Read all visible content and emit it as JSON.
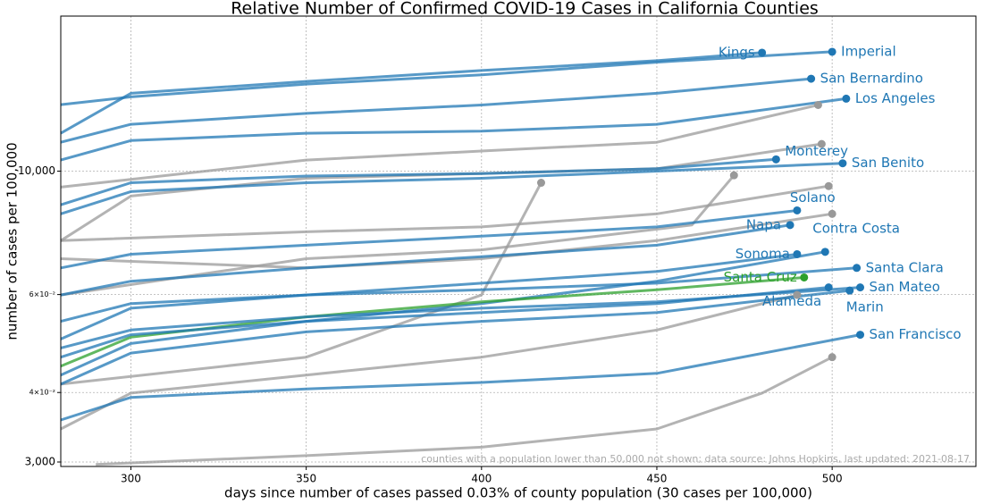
{
  "chart_data": {
    "type": "line",
    "title": "Relative Number of Confirmed COVID-19 Cases in California Counties",
    "x_label": "days since number of cases passed 0.03% of county population (30 cases per 100,000)",
    "y_label": "number of cases per 100,000",
    "annotation": "counties with a population lower than 50,000 not shown; data source: Johns Hopkins, last updated: 2021-08-17",
    "log_y": true,
    "grid": true,
    "xlim": [
      280,
      541
    ],
    "ylim": [
      2945,
      19000
    ],
    "xticks": [
      300,
      350,
      400,
      450,
      500
    ],
    "yticks": [
      {
        "value": 3000,
        "label": "3,000"
      },
      {
        "value": 4000,
        "label": "4×10⁻²"
      },
      {
        "value": 6000,
        "label": "6×10⁻²"
      },
      {
        "value": 10000,
        "label": "10,000"
      }
    ],
    "series": [
      {
        "name": "Imperial",
        "color": "#1f77b4",
        "x": [
          280,
          300,
          350,
          400,
          450,
          500
        ],
        "values": [
          13170,
          13600,
          14340,
          14900,
          15700,
          16390
        ]
      },
      {
        "name": "Kings",
        "color": "#1f77b4",
        "x": [
          280,
          300,
          350,
          400,
          450,
          480
        ],
        "values": [
          11700,
          13800,
          14500,
          15170,
          15800,
          16330
        ]
      },
      {
        "name": "San Bernardino",
        "color": "#1f77b4",
        "x": [
          280,
          300,
          350,
          400,
          450,
          494
        ],
        "values": [
          11270,
          12140,
          12700,
          13150,
          13800,
          14660
        ]
      },
      {
        "name": "Los Angeles",
        "color": "#1f77b4",
        "x": [
          280,
          300,
          350,
          400,
          450,
          504
        ],
        "values": [
          10470,
          11350,
          11700,
          11800,
          12140,
          13500
        ]
      },
      {
        "name": "Monterey",
        "color": "#1f77b4",
        "x": [
          280,
          300,
          350,
          400,
          450,
          484
        ],
        "values": [
          8700,
          9530,
          9800,
          9900,
          10100,
          10500
        ]
      },
      {
        "name": "San Benito",
        "color": "#1f77b4",
        "x": [
          280,
          300,
          350,
          400,
          450,
          503
        ],
        "values": [
          8380,
          9190,
          9530,
          9710,
          10000,
          10330
        ]
      },
      {
        "name": "Solano",
        "color": "#1f77b4",
        "x": [
          280,
          300,
          350,
          400,
          450,
          490
        ],
        "values": [
          6700,
          7090,
          7360,
          7640,
          7940,
          8500
        ]
      },
      {
        "name": "Napa",
        "color": "#1f77b4",
        "x": [
          280,
          300,
          350,
          400,
          450,
          488
        ],
        "values": [
          5990,
          6340,
          6700,
          7020,
          7360,
          8000
        ]
      },
      {
        "name": "Contra Costa",
        "color": "#1f77b4",
        "x": [
          280,
          300,
          350,
          400,
          450,
          498
        ],
        "values": [
          4300,
          4900,
          5370,
          5780,
          6340,
          7160
        ]
      },
      {
        "name": "Sonoma",
        "color": "#1f77b4",
        "x": [
          280,
          300,
          350,
          400,
          450,
          490
        ],
        "values": [
          4990,
          5670,
          5990,
          6290,
          6600,
          7090
        ]
      },
      {
        "name": "Santa Cruz",
        "color": "#2ca02c",
        "x": [
          280,
          300,
          350,
          400,
          450,
          492
        ],
        "values": [
          4460,
          5030,
          5470,
          5820,
          6120,
          6440
        ]
      },
      {
        "name": "Santa Clara",
        "color": "#1f77b4",
        "x": [
          280,
          300,
          350,
          400,
          450,
          507
        ],
        "values": [
          5370,
          5780,
          5990,
          6120,
          6290,
          6700
        ]
      },
      {
        "name": "Alameda",
        "color": "#1f77b4",
        "x": [
          280,
          300,
          350,
          400,
          450,
          499
        ],
        "values": [
          4630,
          5080,
          5370,
          5570,
          5780,
          6180
        ]
      },
      {
        "name": "San Mateo",
        "color": "#1f77b4",
        "x": [
          280,
          300,
          350,
          400,
          450,
          508
        ],
        "values": [
          4810,
          5180,
          5470,
          5670,
          5820,
          6180
        ]
      },
      {
        "name": "Marin",
        "color": "#1f77b4",
        "x": [
          280,
          300,
          350,
          400,
          450,
          505
        ],
        "values": [
          4140,
          4710,
          5140,
          5370,
          5570,
          6100
        ]
      },
      {
        "name": "San Francisco",
        "color": "#1f77b4",
        "x": [
          280,
          300,
          350,
          400,
          450,
          508
        ],
        "values": [
          3570,
          3920,
          4060,
          4170,
          4330,
          5080
        ]
      },
      {
        "color": "#999999",
        "x": [
          280,
          350,
          400,
          450,
          496
        ],
        "values": [
          9360,
          10470,
          10870,
          11270,
          13150
        ]
      },
      {
        "color": "#999999",
        "x": [
          280,
          300,
          350,
          450,
          497
        ],
        "values": [
          7500,
          9020,
          9710,
          10100,
          11190
        ]
      },
      {
        "color": "#999999",
        "x": [
          280,
          350,
          400,
          450,
          499
        ],
        "values": [
          7500,
          7780,
          7940,
          8380,
          9400
        ]
      },
      {
        "color": "#999999",
        "x": [
          290,
          350,
          400,
          450,
          480,
          500
        ],
        "values": [
          2970,
          3080,
          3190,
          3440,
          3990,
          4630
        ]
      },
      {
        "color": "#999999",
        "x": [
          280,
          350,
          400,
          417
        ],
        "values": [
          4140,
          4630,
          5990,
          9530
        ]
      },
      {
        "color": "#999999",
        "x": [
          280,
          300,
          350,
          400,
          450,
          490
        ],
        "values": [
          3440,
          3990,
          4300,
          4630,
          5180,
          5990
        ]
      },
      {
        "color": "#999999",
        "x": [
          280,
          350,
          400,
          450,
          500
        ],
        "values": [
          6960,
          6700,
          6960,
          7500,
          8380
        ]
      },
      {
        "color": "#999999",
        "x": [
          280,
          350,
          400,
          460,
          472
        ],
        "values": [
          5990,
          6960,
          7220,
          8000,
          9830
        ]
      }
    ]
  }
}
